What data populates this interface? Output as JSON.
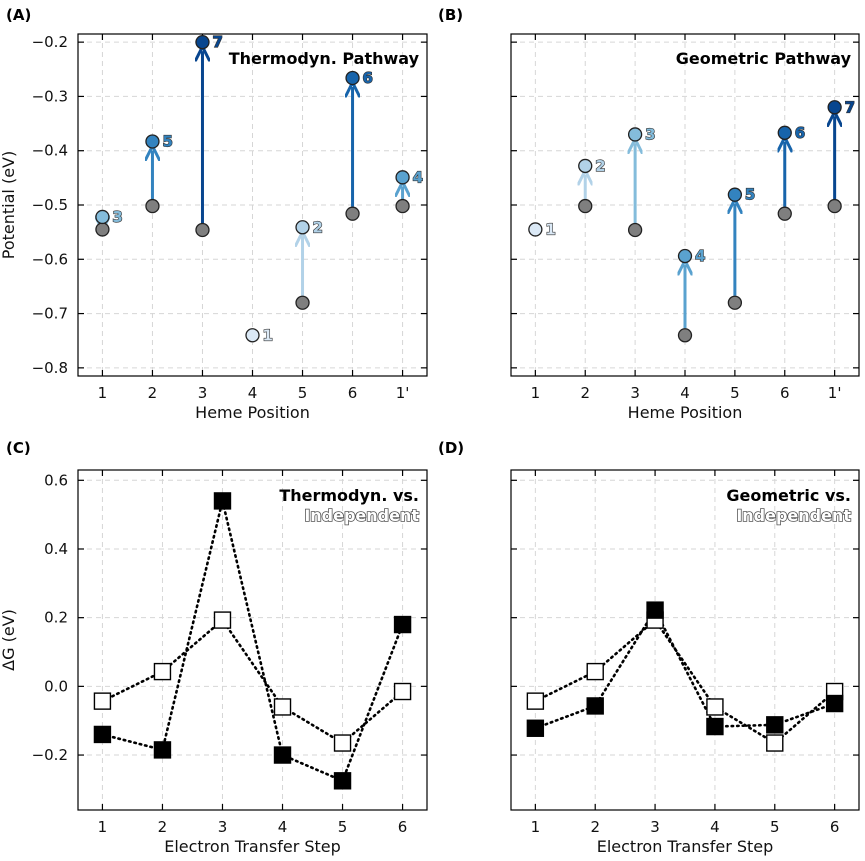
{
  "colors": {
    "ox_fill": "#7f7f7f",
    "ox_stroke": "#222222",
    "shades": [
      "#dbe9f6",
      "#b2d2e8",
      "#84bcdb",
      "#5aa2cf",
      "#3383bf",
      "#1764ab",
      "#08468f"
    ],
    "sq_filled": "#000000",
    "sq_open": "#ffffff"
  },
  "panels": {
    "A": {
      "letter": "(A)"
    },
    "B": {
      "letter": "(B)"
    },
    "C": {
      "letter": "(C)"
    },
    "D": {
      "letter": "(D)"
    }
  },
  "chart_data": [
    {
      "id": "A",
      "type": "scatter",
      "title": "Thermodyn. Pathway",
      "xlabel": "Heme Position",
      "ylabel": "Potential (eV)",
      "categories": [
        "1",
        "2",
        "3",
        "4",
        "5",
        "6",
        "1'"
      ],
      "ylim": [
        -0.815,
        -0.185
      ],
      "yticks": [
        -0.8,
        -0.7,
        -0.6,
        -0.5,
        -0.4,
        -0.3,
        -0.2
      ],
      "yticklabels": [
        "−0.8",
        "−0.7",
        "−0.6",
        "−0.5",
        "−0.4",
        "−0.3",
        "−0.2"
      ],
      "oxidized": [
        -0.545,
        -0.502,
        -0.546,
        null,
        -0.68,
        -0.516,
        -0.502
      ],
      "reduced": [
        -0.522,
        -0.383,
        -0.2,
        -0.74,
        -0.541,
        -0.266,
        -0.449
      ],
      "order": [
        "3",
        "5",
        "7",
        "1",
        "2",
        "6",
        "4"
      ]
    },
    {
      "id": "B",
      "type": "scatter",
      "title": "Geometric Pathway",
      "xlabel": "Heme Position",
      "ylabel": "",
      "categories": [
        "1",
        "2",
        "3",
        "4",
        "5",
        "6",
        "1'"
      ],
      "ylim": [
        -0.815,
        -0.185
      ],
      "oxidized": [
        null,
        -0.502,
        -0.546,
        -0.74,
        -0.68,
        -0.516,
        -0.502
      ],
      "reduced": [
        -0.545,
        -0.428,
        -0.37,
        -0.594,
        -0.481,
        -0.367,
        -0.32
      ],
      "order": [
        "1",
        "2",
        "3",
        "4",
        "5",
        "6",
        "7"
      ]
    },
    {
      "id": "C",
      "type": "line",
      "title_line1": "Thermodyn. vs.",
      "title_line2": "Independent",
      "xlabel": "Electron Transfer Step",
      "ylabel": "ΔG (eV)",
      "categories": [
        "1",
        "2",
        "3",
        "4",
        "5",
        "6"
      ],
      "ylim": [
        -0.36,
        0.63
      ],
      "yticks": [
        -0.2,
        0.0,
        0.2,
        0.4,
        0.6
      ],
      "yticklabels": [
        "−0.2",
        "0.0",
        "0.2",
        "0.4",
        "0.6"
      ],
      "series": [
        {
          "name": "Thermodyn.",
          "style": "filled",
          "values": [
            -0.14,
            -0.185,
            0.54,
            -0.2,
            -0.275,
            0.18
          ]
        },
        {
          "name": "Independent",
          "style": "open",
          "values": [
            -0.043,
            0.043,
            0.193,
            -0.06,
            -0.165,
            -0.015
          ]
        }
      ]
    },
    {
      "id": "D",
      "type": "line",
      "title_line1": "Geometric vs.",
      "title_line2": "Independent",
      "xlabel": "Electron Transfer Step",
      "ylabel": "",
      "categories": [
        "1",
        "2",
        "3",
        "4",
        "5",
        "6"
      ],
      "ylim": [
        -0.36,
        0.63
      ],
      "series": [
        {
          "name": "Geometric",
          "style": "filled",
          "values": [
            -0.122,
            -0.057,
            0.222,
            -0.117,
            -0.112,
            -0.05
          ]
        },
        {
          "name": "Independent",
          "style": "open",
          "values": [
            -0.043,
            0.043,
            0.193,
            -0.06,
            -0.165,
            -0.015
          ]
        }
      ]
    }
  ]
}
